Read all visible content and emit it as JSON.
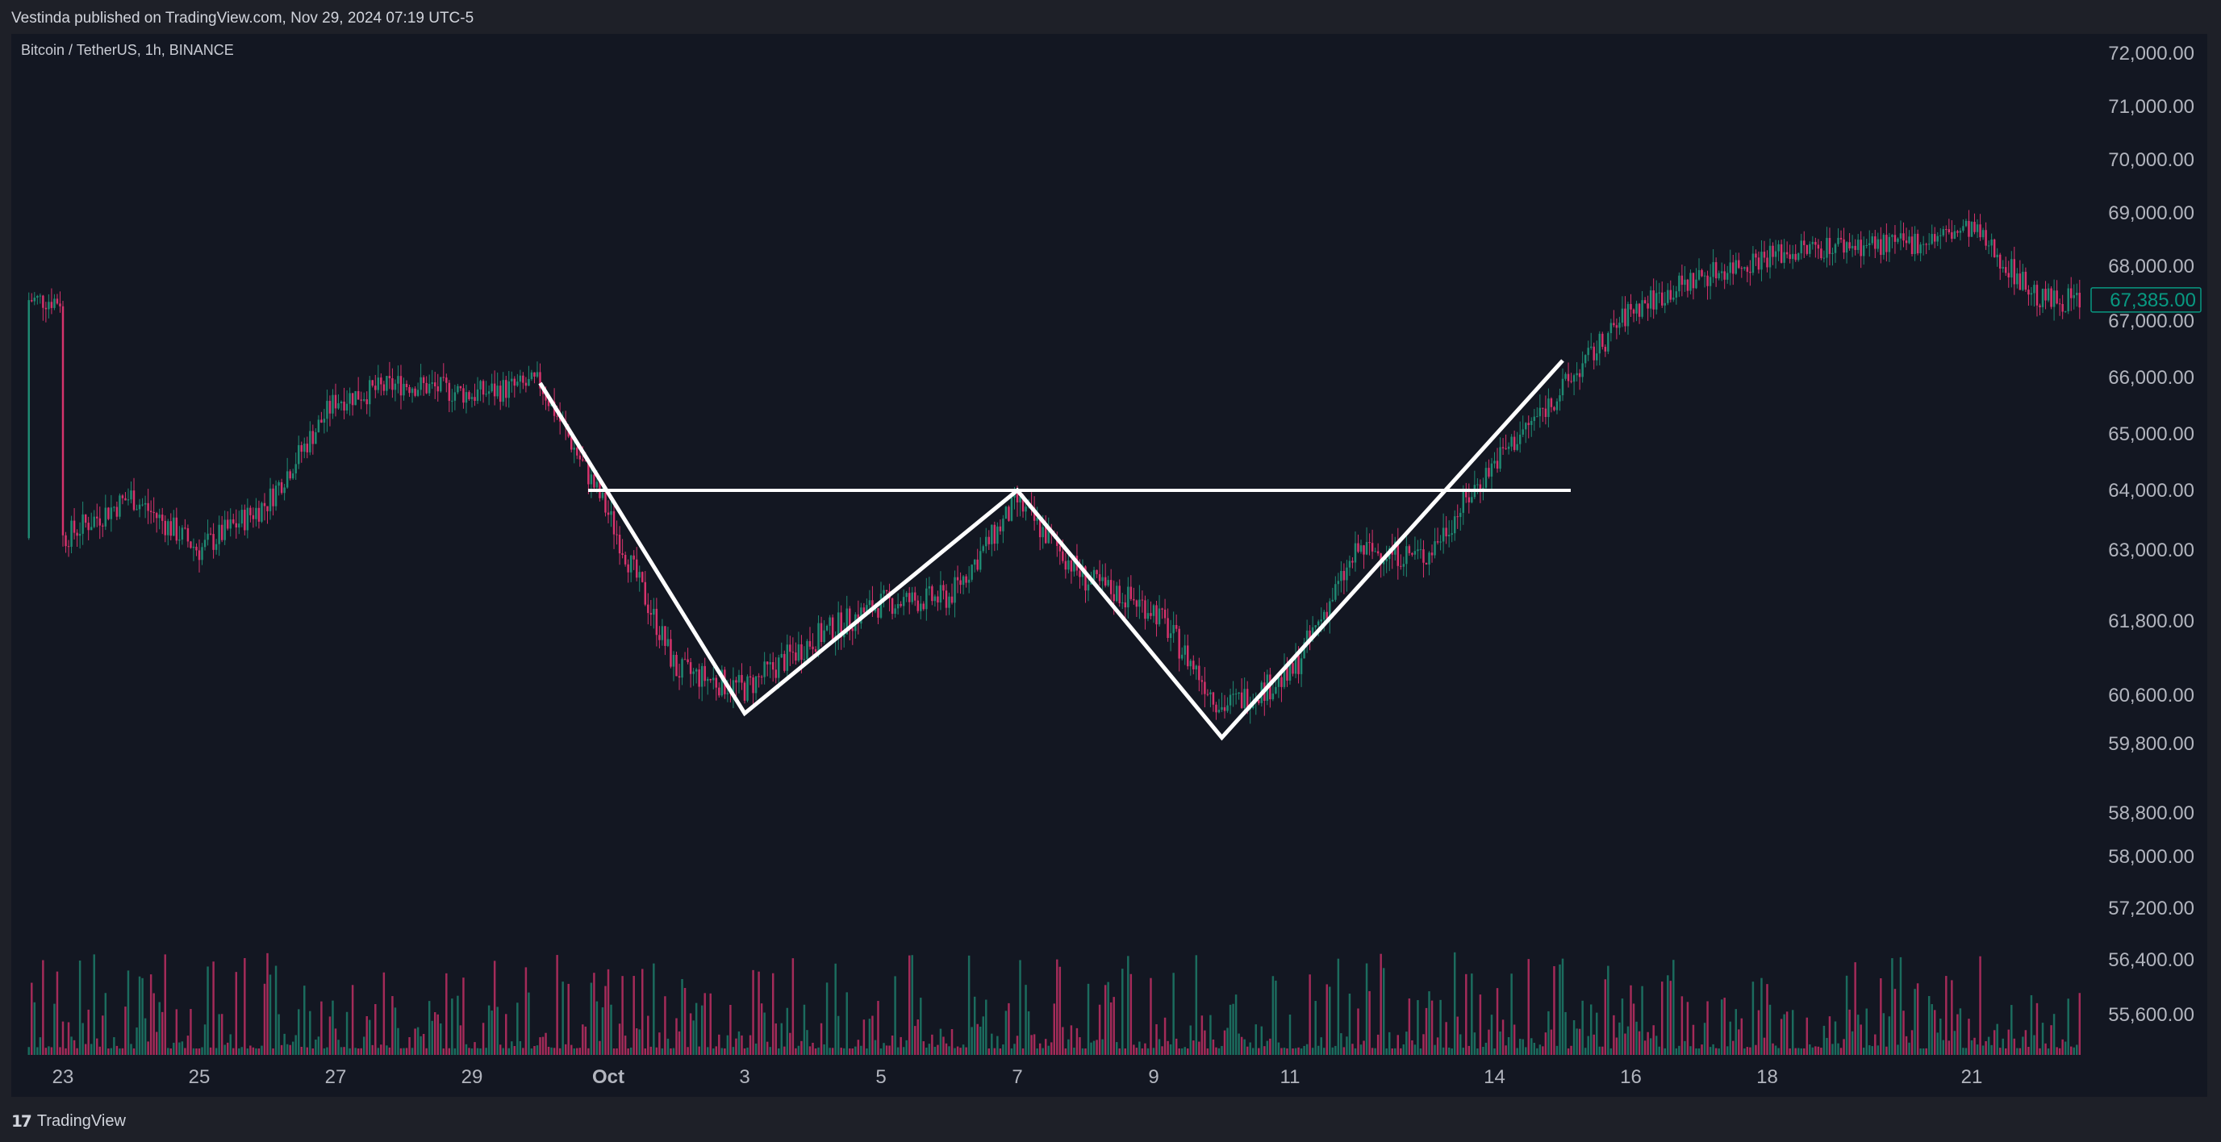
{
  "header": {
    "publish_line": "Vestinda published on TradingView.com, Nov 29, 2024 07:19 UTC-5"
  },
  "symbol_line": "Bitcoin / TetherUS, 1h, BINANCE",
  "footer": {
    "brand": "TradingView"
  },
  "colors": {
    "up": "#26a69a",
    "down": "#ef5350",
    "candle_up": "#1f8a73",
    "candle_down": "#d6336c",
    "background": "#131722",
    "pattern": "#ffffff",
    "price_tag": "#089981"
  },
  "chart_data": {
    "type": "candlestick",
    "symbol": "Bitcoin / TetherUS",
    "interval": "1h",
    "exchange": "BINANCE",
    "y_ticks": [
      "72,000.00",
      "71,000.00",
      "70,000.00",
      "69,000.00",
      "68,000.00",
      "67,000.00",
      "66,000.00",
      "65,000.00",
      "64,000.00",
      "63,000.00",
      "61,800.00",
      "60,600.00",
      "59,800.00",
      "58,800.00",
      "58,000.00",
      "57,200.00",
      "56,400.00",
      "55,600.00"
    ],
    "x_ticks": [
      "23",
      "25",
      "27",
      "29",
      "Oct",
      "3",
      "5",
      "7",
      "9",
      "11",
      "14",
      "16",
      "18",
      "21"
    ],
    "last_price": "67,385.00",
    "price_path": [
      {
        "date": "Sep 23",
        "price": 63200
      },
      {
        "date": "Sep 24",
        "price": 63900
      },
      {
        "date": "Sep 25",
        "price": 63000
      },
      {
        "date": "Sep 26",
        "price": 63800
      },
      {
        "date": "Sep 27",
        "price": 65600
      },
      {
        "date": "Sep 28",
        "price": 65900
      },
      {
        "date": "Sep 29",
        "price": 65700
      },
      {
        "date": "Sep 30",
        "price": 65900
      },
      {
        "date": "Oct 1",
        "price": 63600
      },
      {
        "date": "Oct 2",
        "price": 61000
      },
      {
        "date": "Oct 3",
        "price": 60700
      },
      {
        "date": "Oct 4",
        "price": 61500
      },
      {
        "date": "Oct 5",
        "price": 62100
      },
      {
        "date": "Oct 6",
        "price": 62200
      },
      {
        "date": "Oct 7",
        "price": 63800
      },
      {
        "date": "Oct 8",
        "price": 62500
      },
      {
        "date": "Oct 9",
        "price": 62000
      },
      {
        "date": "Oct 10",
        "price": 60400
      },
      {
        "date": "Oct 11",
        "price": 60900
      },
      {
        "date": "Oct 12",
        "price": 63000
      },
      {
        "date": "Oct 13",
        "price": 62900
      },
      {
        "date": "Oct 14",
        "price": 64500
      },
      {
        "date": "Oct 15",
        "price": 65800
      },
      {
        "date": "Oct 16",
        "price": 67200
      },
      {
        "date": "Oct 17",
        "price": 67800
      },
      {
        "date": "Oct 18",
        "price": 68200
      },
      {
        "date": "Oct 19",
        "price": 68400
      },
      {
        "date": "Oct 20",
        "price": 68400
      },
      {
        "date": "Oct 21",
        "price": 68700
      },
      {
        "date": "Oct 22",
        "price": 67385
      }
    ],
    "pattern": {
      "name": "double bottom",
      "zigzag": [
        {
          "date": "Sep 30",
          "price": 65900
        },
        {
          "date": "Oct 3",
          "price": 60300
        },
        {
          "date": "Oct 7",
          "price": 64000
        },
        {
          "date": "Oct 10",
          "price": 59900
        },
        {
          "date": "Oct 15",
          "price": 66300
        }
      ],
      "neckline": {
        "price": 64000,
        "from": "Oct 1",
        "to": "Oct 15"
      }
    },
    "volume": "shown as bars along bottom (no axis)",
    "grid": false
  }
}
